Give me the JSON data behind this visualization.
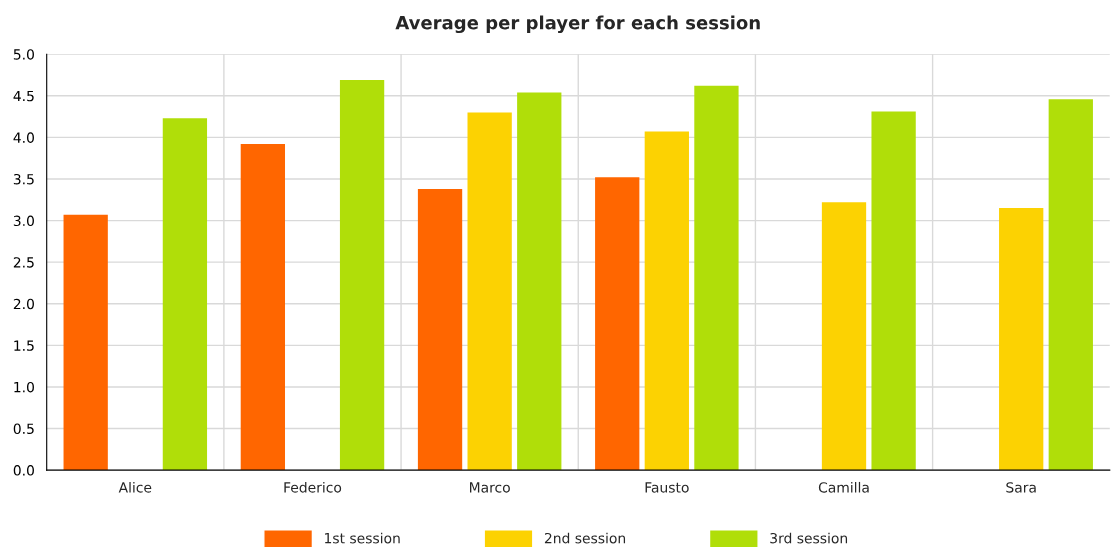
{
  "chart_data": {
    "type": "bar",
    "title": "Average per player for each session",
    "categories": [
      "Alice",
      "Federico",
      "Marco",
      "Fausto",
      "Camilla",
      "Sara"
    ],
    "series": [
      {
        "name": "1st session",
        "color": "#ff6600",
        "values": [
          3.07,
          3.92,
          3.38,
          3.52,
          null,
          null
        ]
      },
      {
        "name": "2nd session",
        "color": "#fcd202",
        "values": [
          0,
          0,
          4.3,
          4.07,
          3.22,
          3.15
        ]
      },
      {
        "name": "3rd session",
        "color": "#b0de09",
        "values": [
          4.23,
          4.69,
          4.54,
          4.62,
          4.31,
          4.46
        ]
      }
    ],
    "ylim": [
      0,
      5
    ],
    "yticks": [
      {
        "value": 0,
        "label": "0.0"
      },
      {
        "value": 0.5,
        "label": "0.5"
      },
      {
        "value": 1,
        "label": "1.0"
      },
      {
        "value": 1.5,
        "label": "1.5"
      },
      {
        "value": 2,
        "label": "2.0"
      },
      {
        "value": 2.5,
        "label": "2.5"
      },
      {
        "value": 3,
        "label": "3.0"
      },
      {
        "value": 3.5,
        "label": "3.5"
      },
      {
        "value": 4,
        "label": "4.0"
      },
      {
        "value": 4.5,
        "label": "4.5"
      },
      {
        "value": 5,
        "label": "5.0"
      }
    ],
    "grid": true,
    "legend": "bottom"
  }
}
